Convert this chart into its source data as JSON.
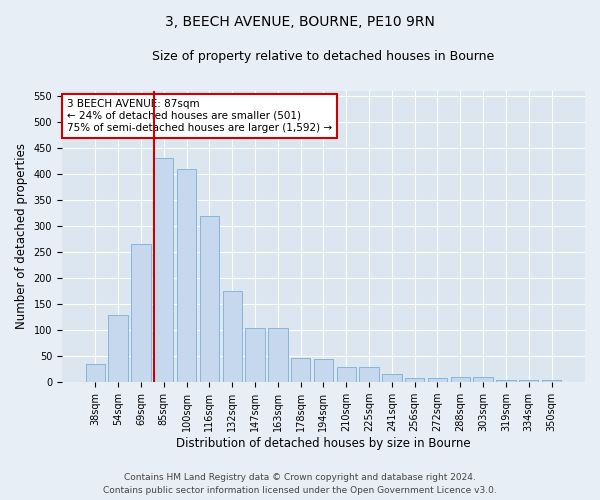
{
  "title": "3, BEECH AVENUE, BOURNE, PE10 9RN",
  "subtitle": "Size of property relative to detached houses in Bourne",
  "xlabel": "Distribution of detached houses by size in Bourne",
  "ylabel": "Number of detached properties",
  "categories": [
    "38sqm",
    "54sqm",
    "69sqm",
    "85sqm",
    "100sqm",
    "116sqm",
    "132sqm",
    "147sqm",
    "163sqm",
    "178sqm",
    "194sqm",
    "210sqm",
    "225sqm",
    "241sqm",
    "256sqm",
    "272sqm",
    "288sqm",
    "303sqm",
    "319sqm",
    "334sqm",
    "350sqm"
  ],
  "values": [
    35,
    130,
    265,
    430,
    410,
    320,
    175,
    105,
    105,
    47,
    45,
    30,
    30,
    15,
    8,
    8,
    10,
    10,
    5,
    5,
    5
  ],
  "bar_color": "#c5d8ee",
  "bar_edge_color": "#7aadd4",
  "vline_color": "#cc0000",
  "vline_index": 3,
  "annotation_text": "3 BEECH AVENUE: 87sqm\n← 24% of detached houses are smaller (501)\n75% of semi-detached houses are larger (1,592) →",
  "annotation_box_color": "#ffffff",
  "annotation_box_edge_color": "#cc0000",
  "ylim": [
    0,
    560
  ],
  "yticks": [
    0,
    50,
    100,
    150,
    200,
    250,
    300,
    350,
    400,
    450,
    500,
    550
  ],
  "footer_line1": "Contains HM Land Registry data © Crown copyright and database right 2024.",
  "footer_line2": "Contains public sector information licensed under the Open Government Licence v3.0.",
  "bg_color": "#e8eef5",
  "plot_bg_color": "#dce6f0",
  "grid_color": "#ffffff",
  "title_fontsize": 10,
  "subtitle_fontsize": 9,
  "axis_label_fontsize": 8.5,
  "tick_fontsize": 7,
  "annotation_fontsize": 7.5,
  "footer_fontsize": 6.5
}
